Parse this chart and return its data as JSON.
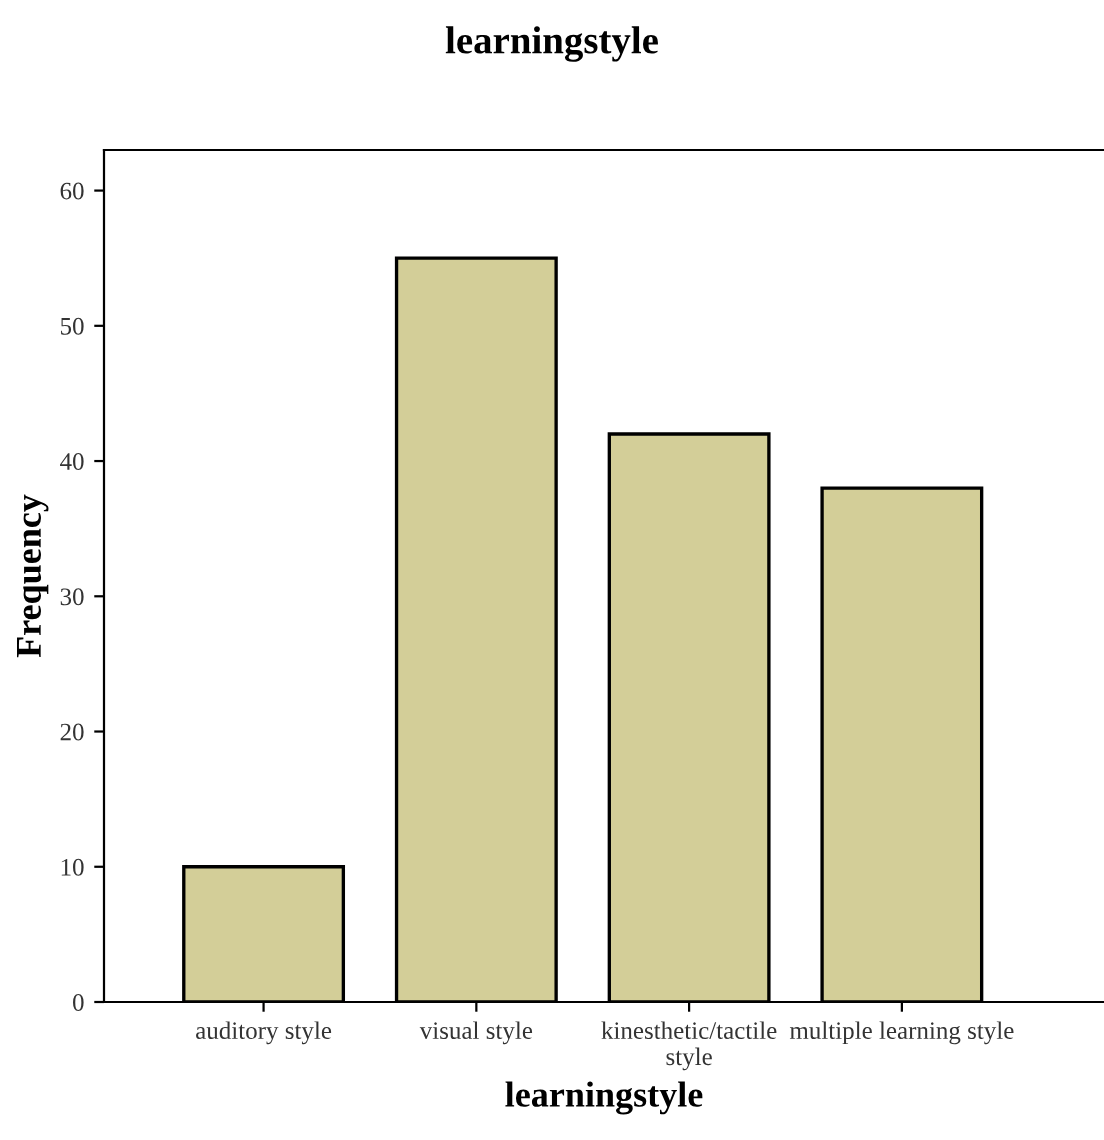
{
  "chart_data": {
    "type": "bar",
    "title": "learningstyle",
    "xlabel": "learningstyle",
    "ylabel": "Frequency",
    "categories": [
      "auditory style",
      "visual style",
      "kinesthetic/tactile\nstyle",
      "multiple learning style"
    ],
    "values": [
      10,
      55,
      42,
      38
    ],
    "color": "#d3ce98",
    "ylim": [
      0,
      63
    ],
    "yticks": [
      0,
      10,
      20,
      30,
      40,
      50,
      60
    ],
    "grid": false,
    "legend": false
  }
}
